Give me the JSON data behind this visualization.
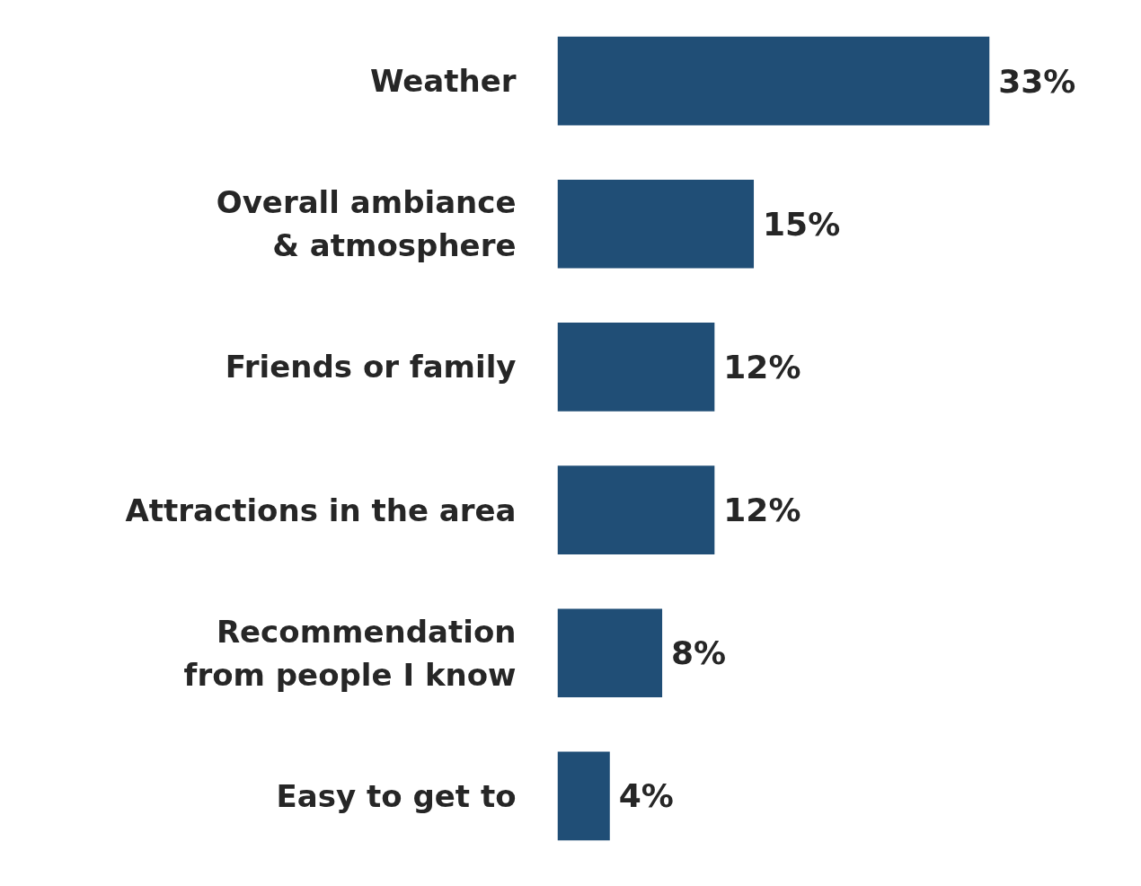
{
  "chart_data": {
    "type": "bar",
    "orientation": "horizontal",
    "categories": [
      "Weather",
      "Overall ambiance\n& atmosphere",
      "Friends or family",
      "Attractions in the area",
      "Recommendation\nfrom people I know",
      "Easy to get to"
    ],
    "values": [
      33,
      15,
      12,
      12,
      8,
      4
    ],
    "value_labels": [
      "33%",
      "15%",
      "12%",
      "12%",
      "8%",
      "4%"
    ],
    "color": "#204e76",
    "tick_labels": "y"
  }
}
